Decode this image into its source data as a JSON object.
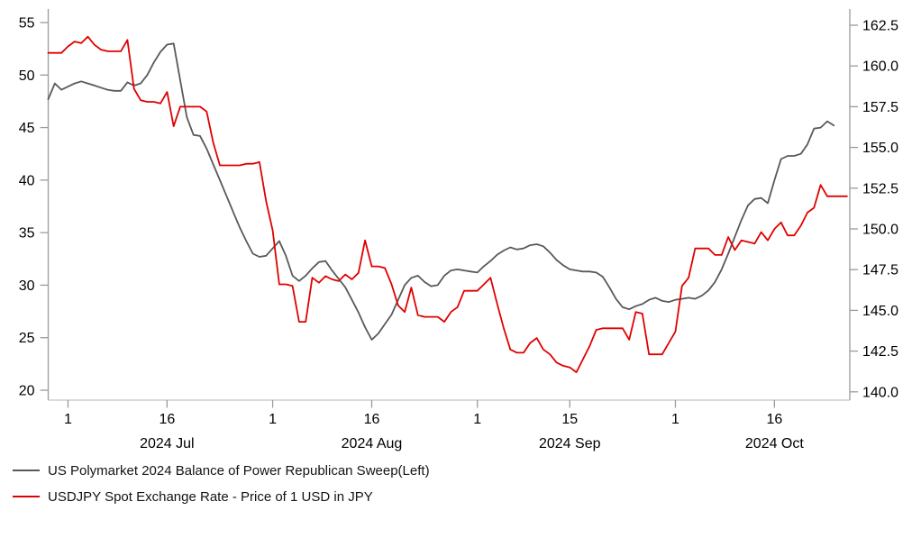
{
  "chart_data": {
    "type": "line",
    "title": "",
    "grid": false,
    "legend_position": "bottom-left",
    "background_color": "#ffffff",
    "axis_color": "#9b9b9b",
    "baseline_color": "#c4c4c4",
    "left_axis": {
      "side": "left",
      "range": [
        20,
        55
      ],
      "tick_labels": [
        "55",
        "50",
        "45",
        "40",
        "35",
        "30",
        "25",
        "20"
      ]
    },
    "right_axis": {
      "side": "right",
      "range": [
        140.0,
        162.5
      ],
      "tick_labels": [
        "162.5",
        "160.0",
        "157.5",
        "155.0",
        "152.5",
        "150.0",
        "147.5",
        "145.0",
        "142.5",
        "140.0"
      ]
    },
    "x_axis": {
      "start_date": "2024-06-28",
      "step_days": 1,
      "ticks": [
        {
          "day_offset": 3,
          "label": "1",
          "month": ""
        },
        {
          "day_offset": 18,
          "label": "16",
          "month": "2024 Jul"
        },
        {
          "day_offset": 34,
          "label": "1",
          "month": ""
        },
        {
          "day_offset": 49,
          "label": "16",
          "month": "2024 Aug"
        },
        {
          "day_offset": 65,
          "label": "1",
          "month": ""
        },
        {
          "day_offset": 79,
          "label": "15",
          "month": "2024 Sep"
        },
        {
          "day_offset": 95,
          "label": "1",
          "month": ""
        },
        {
          "day_offset": 110,
          "label": "16",
          "month": "2024 Oct"
        }
      ]
    },
    "series": [
      {
        "name": "US Polymarket 2024 Balance of Power Republican Sweep(Left)",
        "color": "#595959",
        "axis": "left",
        "start_date": "2024-06-28",
        "values": [
          47.7,
          49.2,
          48.6,
          48.9,
          49.2,
          49.4,
          49.2,
          49.0,
          48.8,
          48.6,
          48.5,
          48.5,
          49.3,
          49.0,
          49.2,
          50.0,
          51.2,
          52.2,
          52.9,
          53.0,
          49.5,
          46.0,
          44.3,
          44.2,
          43.0,
          41.5,
          40.0,
          38.5,
          37.0,
          35.5,
          34.2,
          33.0,
          32.7,
          32.8,
          33.5,
          34.2,
          32.8,
          30.9,
          30.4,
          30.9,
          31.6,
          32.2,
          32.3,
          31.4,
          30.6,
          29.8,
          28.6,
          27.4,
          26.0,
          24.8,
          25.4,
          26.3,
          27.2,
          28.6,
          30.0,
          30.7,
          30.9,
          30.3,
          29.9,
          30.0,
          30.9,
          31.4,
          31.5,
          31.4,
          31.3,
          31.2,
          31.8,
          32.3,
          32.9,
          33.3,
          33.6,
          33.4,
          33.5,
          33.8,
          33.9,
          33.7,
          33.1,
          32.4,
          31.9,
          31.5,
          31.4,
          31.3,
          31.3,
          31.2,
          30.8,
          29.8,
          28.7,
          27.9,
          27.7,
          28.0,
          28.2,
          28.6,
          28.8,
          28.5,
          28.4,
          28.6,
          28.7,
          28.8,
          28.7,
          29.0,
          29.5,
          30.3,
          31.5,
          33.0,
          34.6,
          36.2,
          37.6,
          38.2,
          38.3,
          37.8,
          40.0,
          42.0,
          42.3,
          42.3,
          42.5,
          43.4,
          44.9,
          45.0,
          45.6,
          45.2
        ]
      },
      {
        "name": "USDJPY Spot Exchange Rate - Price of 1 USD in JPY",
        "color": "#e00000",
        "axis": "right",
        "start_date": "2024-06-28",
        "values": [
          160.8,
          160.8,
          160.8,
          161.2,
          161.5,
          161.4,
          161.8,
          161.3,
          161.0,
          160.9,
          160.9,
          160.9,
          161.6,
          158.6,
          157.9,
          157.8,
          157.8,
          157.7,
          158.4,
          156.3,
          157.5,
          157.5,
          157.5,
          157.5,
          157.2,
          155.3,
          153.9,
          153.9,
          153.9,
          153.9,
          154.0,
          154.0,
          154.1,
          151.7,
          149.9,
          146.6,
          146.6,
          146.5,
          144.3,
          144.3,
          147.0,
          146.7,
          147.1,
          146.9,
          146.8,
          147.2,
          146.9,
          147.3,
          149.3,
          147.7,
          147.7,
          147.6,
          146.6,
          145.3,
          144.9,
          146.4,
          144.7,
          144.6,
          144.6,
          144.6,
          144.3,
          144.9,
          145.2,
          146.2,
          146.2,
          146.2,
          146.6,
          147.0,
          145.4,
          143.9,
          142.6,
          142.4,
          142.4,
          143.0,
          143.3,
          142.6,
          142.3,
          141.8,
          141.6,
          141.5,
          141.2,
          142.0,
          142.8,
          143.8,
          143.9,
          143.9,
          143.9,
          143.9,
          143.2,
          144.9,
          144.8,
          142.3,
          142.3,
          142.3,
          143.0,
          143.7,
          146.5,
          147.0,
          148.8,
          148.8,
          148.8,
          148.4,
          148.4,
          149.5,
          148.7,
          149.3,
          149.2,
          149.1,
          149.8,
          149.3,
          150.0,
          150.4,
          149.6,
          149.6,
          150.2,
          151.0,
          151.3,
          152.7,
          152.0,
          152.0,
          152.0,
          152.0
        ]
      }
    ]
  },
  "legend": {
    "item1": "US Polymarket 2024 Balance of Power Republican Sweep(Left)",
    "item2": "USDJPY Spot Exchange Rate - Price of 1 USD in JPY"
  }
}
